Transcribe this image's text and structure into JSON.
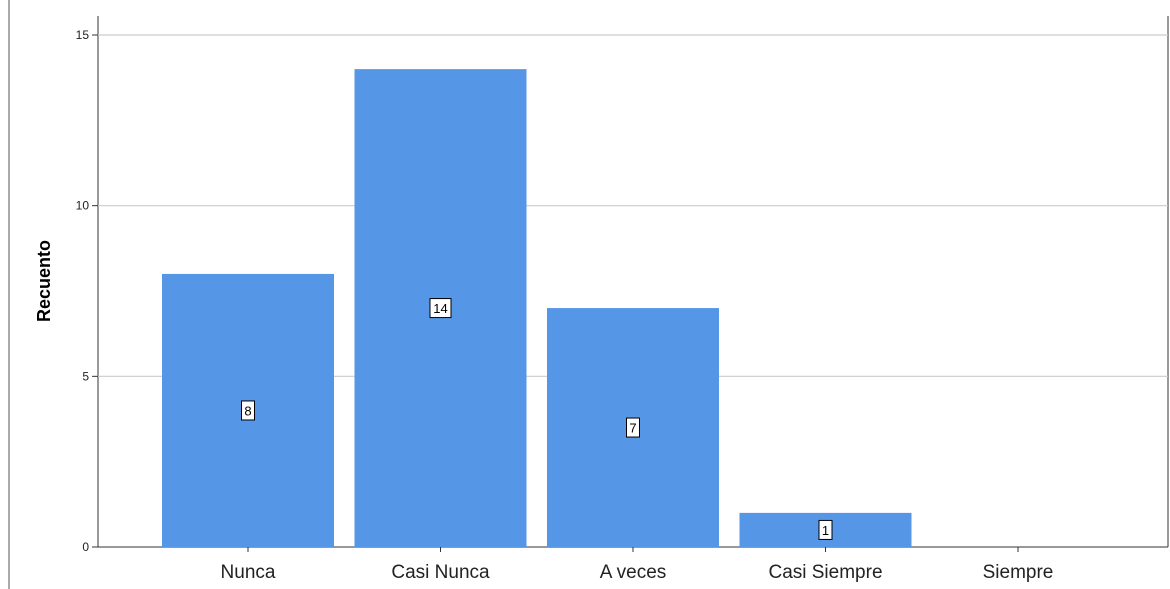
{
  "chart_data": {
    "type": "bar",
    "categories": [
      "Nunca",
      "Casi Nunca",
      "A veces",
      "Casi Siempre",
      "Siempre"
    ],
    "values": [
      8,
      14,
      7,
      1,
      0
    ],
    "data_labels": [
      "8",
      "14",
      "7",
      "1",
      ""
    ],
    "ylabel": "Recuento",
    "xlabel": "",
    "ylim": [
      0,
      15
    ],
    "yticks": [
      0,
      5,
      10,
      15
    ],
    "ytick_labels": [
      "0",
      "5",
      "10",
      "15"
    ],
    "grid": true,
    "bar_color": "#5596e6",
    "gridline_color": "#cccccc"
  }
}
